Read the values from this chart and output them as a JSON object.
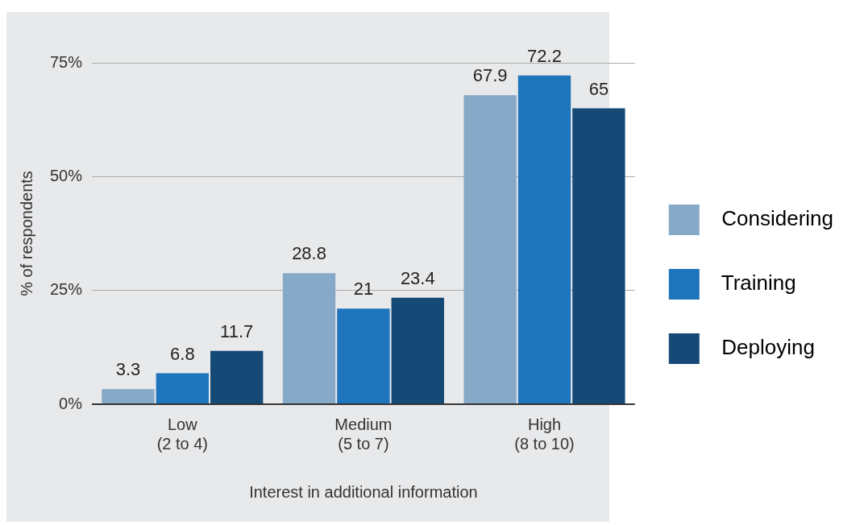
{
  "chart_data": {
    "type": "bar",
    "xlabel": "Interest in additional information",
    "ylabel": "% of respondents",
    "categories": [
      "Low\n(2 to 4)",
      "Medium\n(5 to 7)",
      "High\n(8 to 10)"
    ],
    "series": [
      {
        "name": "Considering",
        "color": "#86a9c8",
        "values": [
          3.3,
          28.8,
          67.9
        ]
      },
      {
        "name": "Training",
        "color": "#1f75bc",
        "values": [
          6.8,
          21,
          72.2
        ]
      },
      {
        "name": "Deploying",
        "color": "#154a77",
        "values": [
          11.7,
          23.4,
          65
        ]
      }
    ],
    "ylim": [
      0,
      75
    ],
    "yticks": [
      {
        "value": 0,
        "label": "0%"
      },
      {
        "value": 25,
        "label": "25%"
      },
      {
        "value": 50,
        "label": "50%"
      },
      {
        "value": 75,
        "label": "75%"
      }
    ],
    "grid": "y",
    "legend": "right",
    "data_labels": true
  }
}
